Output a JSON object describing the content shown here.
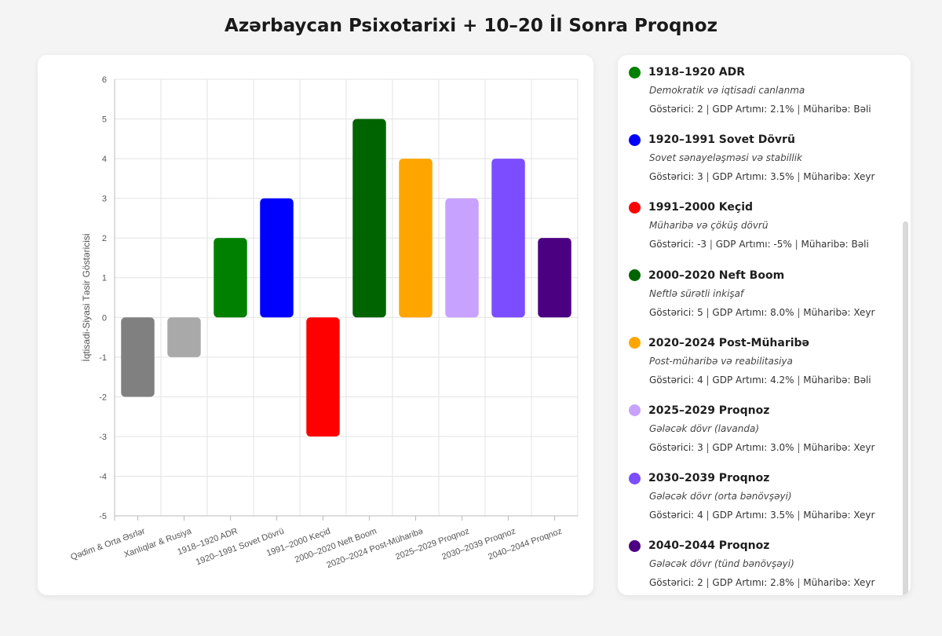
{
  "title": "Azərbaycan Psixotarixi + 10–20 İl Sonra Proqnoz",
  "chart_data": {
    "type": "bar",
    "ylabel": "İqtisadi-Siyasi Təsir Göstəricisi",
    "xlabel": "",
    "ylim": [
      -5,
      6
    ],
    "yticks": [
      6,
      5,
      4,
      3,
      2,
      1,
      0,
      -1,
      -2,
      -3,
      -4,
      -5
    ],
    "grid": true,
    "categories": [
      "Qədim & Orta Əsrlər",
      "Xanlıqlar & Rusiya",
      "1918–1920 ADR",
      "1920–1991 Sovet Dövrü",
      "1991–2000 Keçid",
      "2000–2020 Neft Boom",
      "2020–2024 Post-Müharibə",
      "2025–2029 Proqnoz",
      "2030–2039 Proqnoz",
      "2040–2044 Proqnoz"
    ],
    "values": [
      -2,
      -1,
      2,
      3,
      -3,
      5,
      4,
      3,
      4,
      2
    ],
    "colors": [
      "#808080",
      "#a9a9a9",
      "#008000",
      "#0000ff",
      "#ff0000",
      "#006400",
      "#ffa500",
      "#c8a2ff",
      "#7b4dff",
      "#4b0082"
    ]
  },
  "legend": {
    "stat_labels": {
      "indicator": "Göstərici:",
      "gdp": "GDP Artımı:",
      "war": "Müharibə:",
      "separator": "|"
    },
    "items": [
      {
        "name": "1918–1920 ADR",
        "color": "#008000",
        "desc": "Demokratik və iqtisadi canlanma",
        "indicator": "2",
        "gdp": "2.1%",
        "war": "Bəli"
      },
      {
        "name": "1920–1991 Sovet Dövrü",
        "color": "#0000ff",
        "desc": "Sovet sənayeləşməsi və stabillik",
        "indicator": "3",
        "gdp": "3.5%",
        "war": "Xeyr"
      },
      {
        "name": "1991–2000 Keçid",
        "color": "#ff0000",
        "desc": "Müharibə və çöküş dövrü",
        "indicator": "-3",
        "gdp": "-5%",
        "war": "Bəli"
      },
      {
        "name": "2000–2020 Neft Boom",
        "color": "#006400",
        "desc": "Neftlə sürətli inkişaf",
        "indicator": "5",
        "gdp": "8.0%",
        "war": "Xeyr"
      },
      {
        "name": "2020–2024 Post-Müharibə",
        "color": "#ffa500",
        "desc": "Post-müharibə və reabilitasiya",
        "indicator": "4",
        "gdp": "4.2%",
        "war": "Bəli"
      },
      {
        "name": "2025–2029 Proqnoz",
        "color": "#c8a2ff",
        "desc": "Gələcək dövr (lavanda)",
        "indicator": "3",
        "gdp": "3.0%",
        "war": "Xeyr"
      },
      {
        "name": "2030–2039 Proqnoz",
        "color": "#7b4dff",
        "desc": "Gələcək dövr (orta bənövşəyi)",
        "indicator": "4",
        "gdp": "3.5%",
        "war": "Xeyr"
      },
      {
        "name": "2040–2044 Proqnoz",
        "color": "#4b0082",
        "desc": "Gələcək dövr (tünd bənövşəyi)",
        "indicator": "2",
        "gdp": "2.8%",
        "war": "Xeyr"
      }
    ]
  }
}
